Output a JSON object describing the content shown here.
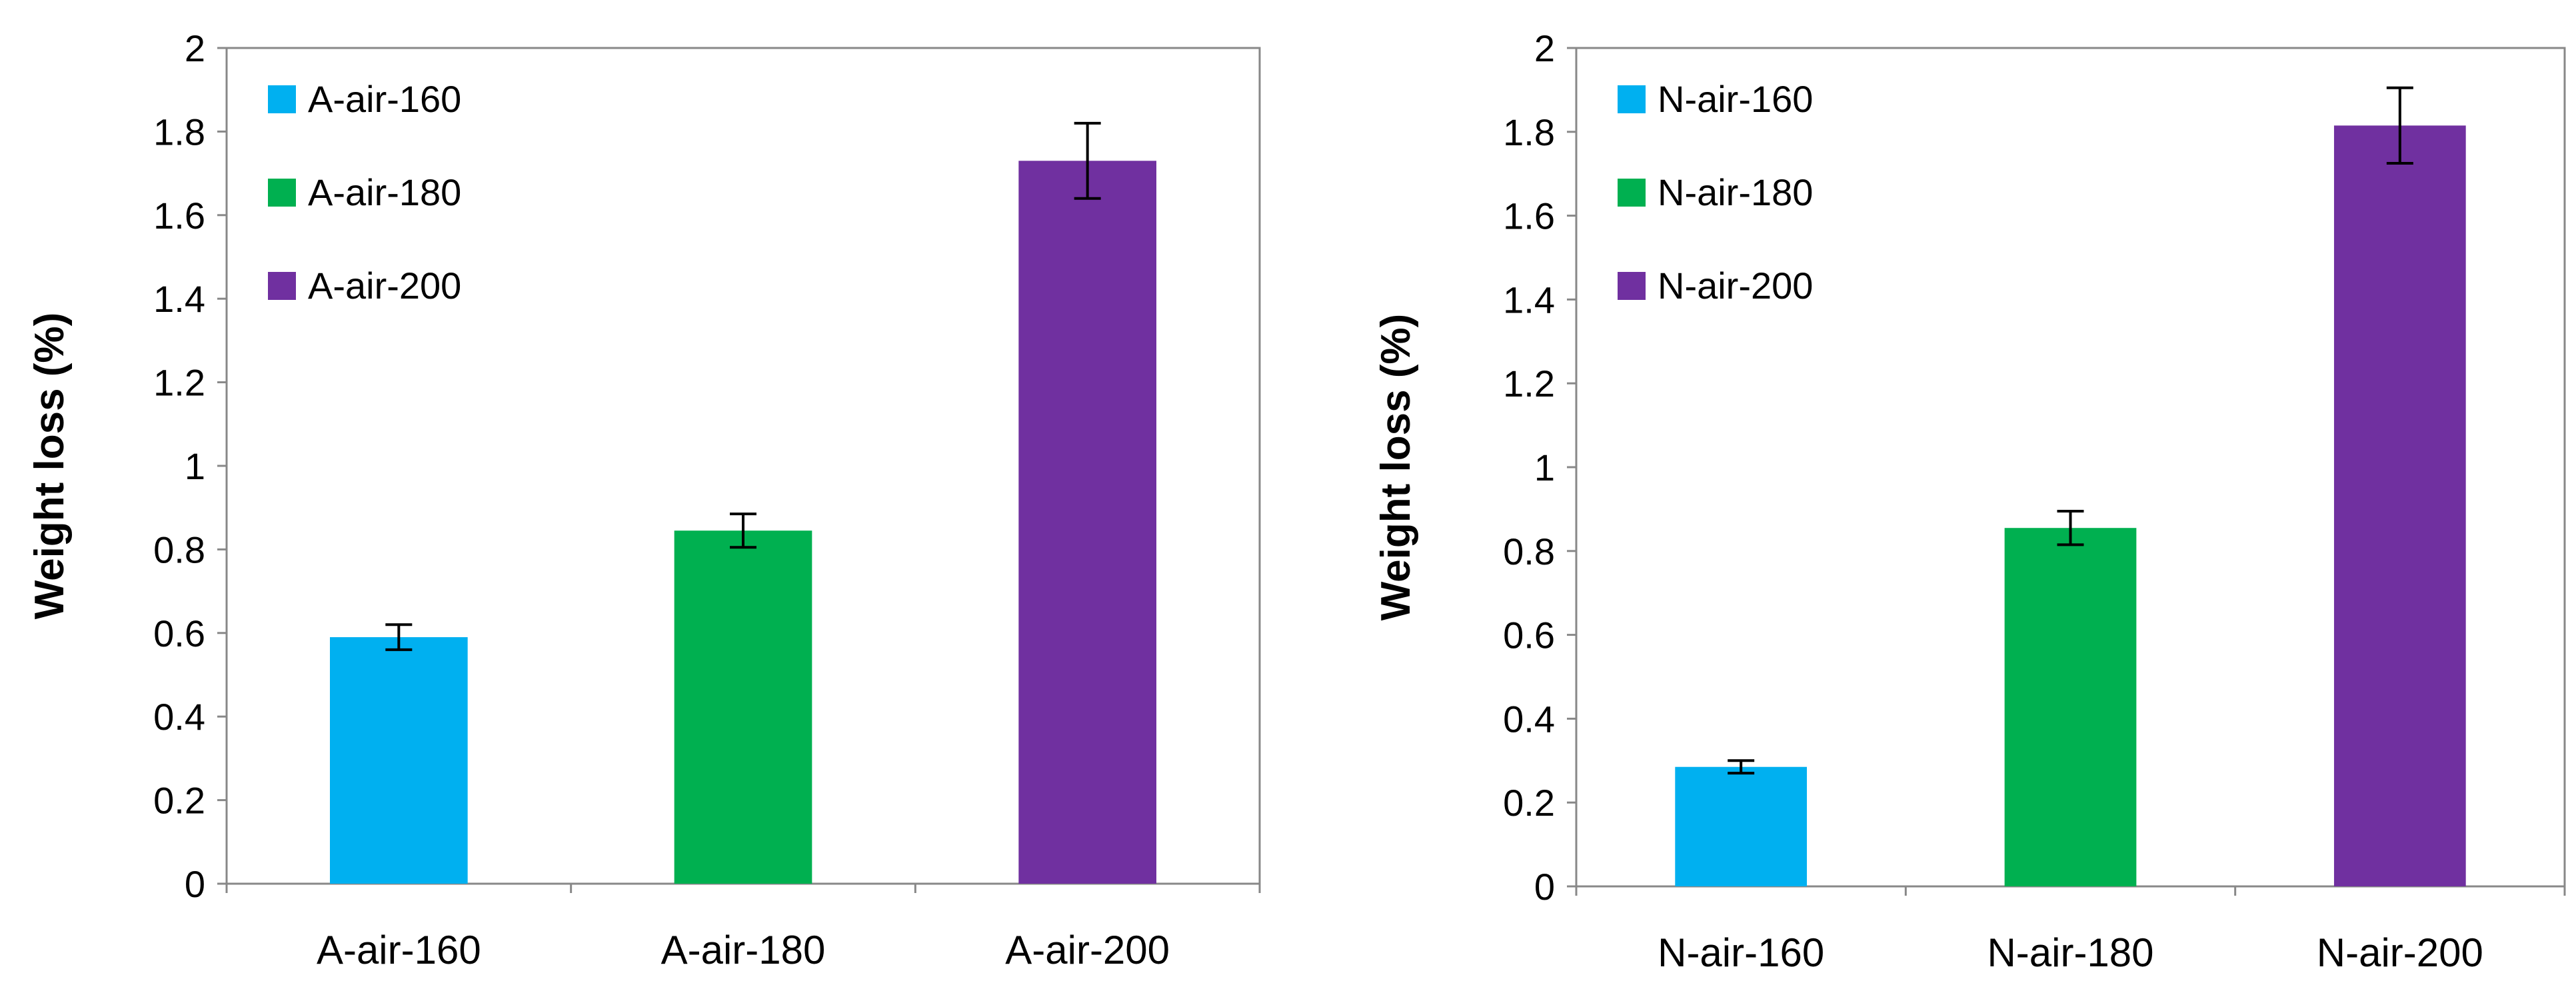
{
  "chart_data": [
    {
      "type": "bar",
      "categories": [
        "A-air-160",
        "A-air-180",
        "A-air-200"
      ],
      "values": [
        0.59,
        0.845,
        1.73
      ],
      "errors": [
        0.03,
        0.04,
        0.09
      ],
      "colors": [
        "#00b0f0",
        "#00b050",
        "#7030a0"
      ],
      "legend": [
        "A-air-160",
        "A-air-180",
        "A-air-200"
      ],
      "ylabel": "Weight loss (%)",
      "xlabel": "",
      "ylim": [
        0,
        2
      ],
      "yticks": [
        "0",
        "0.2",
        "0.4",
        "0.6",
        "0.8",
        "1",
        "1.2",
        "1.4",
        "1.6",
        "1.8",
        "2"
      ],
      "legend_position": "top-left"
    },
    {
      "type": "bar",
      "categories": [
        "N-air-160",
        "N-air-180",
        "N-air-200"
      ],
      "values": [
        0.285,
        0.855,
        1.815
      ],
      "errors": [
        0.015,
        0.04,
        0.09
      ],
      "colors": [
        "#00b0f0",
        "#00b050",
        "#7030a0"
      ],
      "legend": [
        "N-air-160",
        "N-air-180",
        "N-air-200"
      ],
      "ylabel": "Weight loss (%)",
      "xlabel": "",
      "ylim": [
        0,
        2
      ],
      "yticks": [
        "0",
        "0.2",
        "0.4",
        "0.6",
        "0.8",
        "1",
        "1.2",
        "1.4",
        "1.6",
        "1.8",
        "2"
      ],
      "legend_position": "top-left"
    }
  ]
}
